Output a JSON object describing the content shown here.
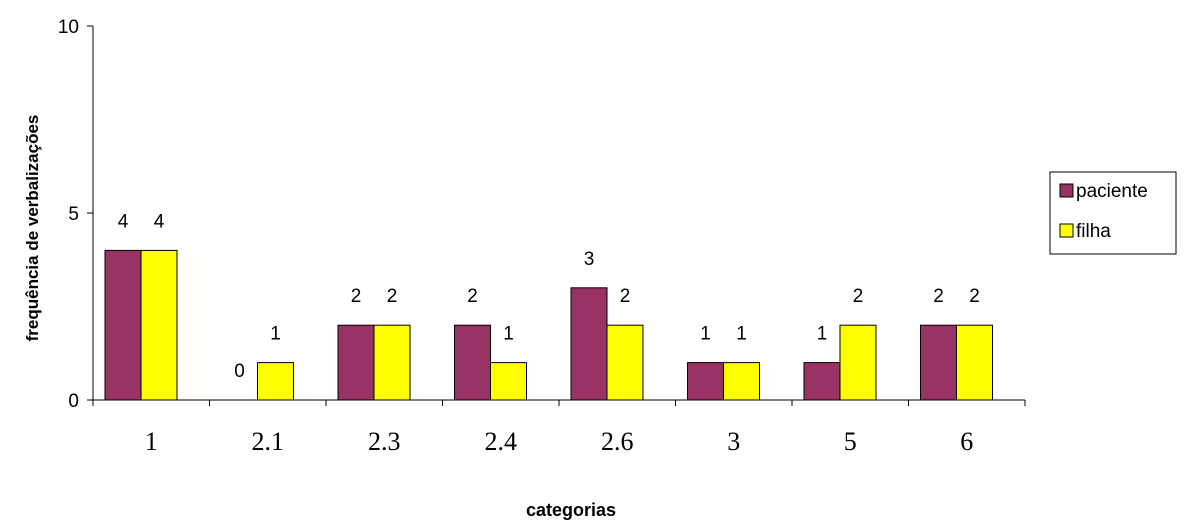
{
  "chart_data": {
    "type": "bar",
    "title": "",
    "xlabel": "categorias",
    "ylabel": "frequência de verbalizações",
    "categories": [
      "1",
      "2.1",
      "2.3",
      "2.4",
      "2.6",
      "3",
      "5",
      "6"
    ],
    "series": [
      {
        "name": "paciente",
        "values": [
          4,
          0,
          2,
          2,
          3,
          1,
          1,
          2
        ],
        "color": "#993366"
      },
      {
        "name": "filha",
        "values": [
          4,
          1,
          2,
          1,
          2,
          1,
          2,
          2
        ],
        "color": "#ffff00"
      }
    ],
    "ylim": [
      0,
      10
    ],
    "yticks": [
      0,
      5,
      10
    ],
    "grid": false,
    "legend_position": "right"
  }
}
